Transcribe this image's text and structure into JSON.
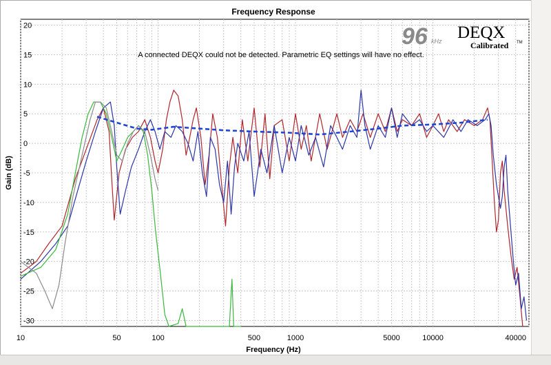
{
  "colors": {
    "background": "#ffffff",
    "grid": "#c8c8c8",
    "red": "#b0242c",
    "blue": "#2a34a8",
    "green": "#38b83a",
    "gray": "#8a8a8a",
    "target": "#1e46d2"
  },
  "brand": {
    "rate": "96",
    "rate_unit": "kHz",
    "name": "DEQX",
    "tagline": "Calibrated",
    "tm": "TM"
  },
  "notice": "A connected DEQX could not be detected.  Parametric EQ settings will have no effect.",
  "chart_data": {
    "type": "line",
    "title": "Frequency Response",
    "xlabel": "Frequency (Hz)",
    "ylabel": "Gain (dB)",
    "x_scale": "log",
    "xlim": [
      10,
      50000
    ],
    "ylim": [
      -31,
      21
    ],
    "grid": true,
    "x_ticks": [
      10,
      50,
      100,
      500,
      1000,
      5000,
      10000,
      40000
    ],
    "y_ticks": [
      20,
      15,
      10,
      5,
      0,
      -5,
      -10,
      -15,
      -20,
      -25,
      -30
    ],
    "series": [
      {
        "color_key": "red",
        "points": [
          [
            10,
            -22
          ],
          [
            13,
            -20
          ],
          [
            16,
            -17
          ],
          [
            20,
            -14
          ],
          [
            25,
            -6
          ],
          [
            30,
            -1
          ],
          [
            36,
            4
          ],
          [
            40,
            6
          ],
          [
            44,
            2
          ],
          [
            46,
            -6
          ],
          [
            48,
            -13
          ],
          [
            52,
            -5
          ],
          [
            58,
            -1
          ],
          [
            65,
            1
          ],
          [
            72,
            2
          ],
          [
            80,
            4
          ],
          [
            88,
            1
          ],
          [
            95,
            -3
          ],
          [
            100,
            -5
          ],
          [
            108,
            -1
          ],
          [
            115,
            4
          ],
          [
            122,
            7
          ],
          [
            130,
            9
          ],
          [
            140,
            8
          ],
          [
            150,
            4
          ],
          [
            160,
            -2
          ],
          [
            170,
            1
          ],
          [
            180,
            4
          ],
          [
            190,
            6
          ],
          [
            205,
            1
          ],
          [
            220,
            -7
          ],
          [
            235,
            -2
          ],
          [
            250,
            5
          ],
          [
            270,
            1
          ],
          [
            290,
            -7
          ],
          [
            310,
            -14
          ],
          [
            330,
            -4
          ],
          [
            350,
            1
          ],
          [
            380,
            -5
          ],
          [
            410,
            4
          ],
          [
            450,
            -3
          ],
          [
            500,
            6
          ],
          [
            550,
            -4
          ],
          [
            600,
            5
          ],
          [
            650,
            -6
          ],
          [
            700,
            3
          ],
          [
            800,
            4
          ],
          [
            900,
            -3
          ],
          [
            1000,
            5
          ],
          [
            1100,
            -1
          ],
          [
            1200,
            3
          ],
          [
            1300,
            -3
          ],
          [
            1500,
            5
          ],
          [
            1700,
            -1
          ],
          [
            2000,
            5
          ],
          [
            2200,
            1
          ],
          [
            2500,
            4
          ],
          [
            2800,
            2
          ],
          [
            3100,
            5
          ],
          [
            3500,
            1
          ],
          [
            4000,
            5
          ],
          [
            4500,
            2
          ],
          [
            5000,
            6
          ],
          [
            5500,
            2
          ],
          [
            6000,
            4
          ],
          [
            7000,
            3
          ],
          [
            8000,
            5
          ],
          [
            9000,
            1
          ],
          [
            10000,
            3
          ],
          [
            11000,
            5
          ],
          [
            12000,
            2
          ],
          [
            13000,
            4
          ],
          [
            15000,
            2
          ],
          [
            17000,
            4
          ],
          [
            20000,
            3
          ],
          [
            23000,
            4
          ],
          [
            25000,
            6
          ],
          [
            26000,
            4
          ],
          [
            27000,
            -3
          ],
          [
            28000,
            -10
          ],
          [
            29000,
            -15
          ],
          [
            30000,
            -13
          ],
          [
            31000,
            -5
          ],
          [
            32000,
            -3
          ],
          [
            33000,
            -8
          ],
          [
            35000,
            -14
          ],
          [
            37000,
            -19
          ],
          [
            39000,
            -23
          ],
          [
            41000,
            -21
          ],
          [
            43000,
            -26
          ],
          [
            45000,
            -31
          ]
        ]
      },
      {
        "color_key": "blue",
        "points": [
          [
            10,
            -23
          ],
          [
            14,
            -20
          ],
          [
            18,
            -17
          ],
          [
            22,
            -14
          ],
          [
            26,
            -8
          ],
          [
            30,
            -3
          ],
          [
            35,
            2
          ],
          [
            40,
            6
          ],
          [
            45,
            7
          ],
          [
            48,
            3
          ],
          [
            50,
            -4
          ],
          [
            53,
            -12
          ],
          [
            58,
            -8
          ],
          [
            64,
            -4
          ],
          [
            72,
            -1
          ],
          [
            80,
            2
          ],
          [
            88,
            4
          ],
          [
            95,
            2
          ],
          [
            103,
            -1
          ],
          [
            112,
            2
          ],
          [
            124,
            1
          ],
          [
            135,
            3
          ],
          [
            150,
            2
          ],
          [
            165,
            0
          ],
          [
            180,
            -3
          ],
          [
            195,
            2
          ],
          [
            210,
            -5
          ],
          [
            225,
            -9
          ],
          [
            240,
            1
          ],
          [
            260,
            -1
          ],
          [
            280,
            -7
          ],
          [
            300,
            -10
          ],
          [
            320,
            -3
          ],
          [
            340,
            -12
          ],
          [
            360,
            -4
          ],
          [
            380,
            0
          ],
          [
            420,
            -3
          ],
          [
            460,
            2
          ],
          [
            500,
            -9
          ],
          [
            560,
            -1
          ],
          [
            620,
            -5
          ],
          [
            700,
            3
          ],
          [
            800,
            -5
          ],
          [
            900,
            1
          ],
          [
            1000,
            -3
          ],
          [
            1100,
            3
          ],
          [
            1250,
            -2
          ],
          [
            1400,
            1
          ],
          [
            1600,
            -4
          ],
          [
            1800,
            3
          ],
          [
            2000,
            1
          ],
          [
            2200,
            -1
          ],
          [
            2500,
            3
          ],
          [
            2800,
            1
          ],
          [
            3000,
            9
          ],
          [
            3200,
            3
          ],
          [
            3500,
            -1
          ],
          [
            4000,
            3
          ],
          [
            4500,
            1
          ],
          [
            5000,
            6
          ],
          [
            5500,
            1
          ],
          [
            6000,
            5
          ],
          [
            7000,
            3
          ],
          [
            8000,
            4
          ],
          [
            9000,
            2
          ],
          [
            10000,
            3
          ],
          [
            12000,
            1
          ],
          [
            14000,
            4
          ],
          [
            16000,
            2
          ],
          [
            18000,
            4
          ],
          [
            21000,
            3
          ],
          [
            24000,
            4
          ],
          [
            25500,
            5
          ],
          [
            26500,
            3
          ],
          [
            27500,
            -2
          ],
          [
            29000,
            -7
          ],
          [
            31000,
            -11
          ],
          [
            32000,
            -9
          ],
          [
            33000,
            -4
          ],
          [
            34000,
            -2
          ],
          [
            35000,
            -8
          ],
          [
            37000,
            -15
          ],
          [
            38500,
            -20
          ],
          [
            40000,
            -24
          ],
          [
            42000,
            -22
          ],
          [
            44000,
            -28
          ],
          [
            46000,
            -26
          ],
          [
            48000,
            -30
          ]
        ]
      },
      {
        "color_key": "green",
        "points": [
          [
            10,
            -22.5
          ],
          [
            14,
            -21
          ],
          [
            18,
            -18
          ],
          [
            22,
            -12
          ],
          [
            25,
            -5
          ],
          [
            28,
            1
          ],
          [
            31,
            5
          ],
          [
            34,
            7
          ],
          [
            38,
            7
          ],
          [
            42,
            5
          ],
          [
            46,
            1
          ],
          [
            50,
            -3
          ],
          [
            55,
            -1
          ],
          [
            60,
            1
          ],
          [
            66,
            2
          ],
          [
            72,
            3
          ],
          [
            78,
            2
          ],
          [
            84,
            -2
          ],
          [
            90,
            -8
          ],
          [
            96,
            -15
          ],
          [
            104,
            -22
          ],
          [
            112,
            -29
          ],
          [
            120,
            -31
          ],
          [
            140,
            -30.5
          ],
          [
            150,
            -28
          ],
          [
            160,
            -31
          ],
          [
            330,
            -31
          ],
          [
            345,
            -23
          ],
          [
            355,
            -31
          ],
          [
            400,
            -31
          ]
        ]
      },
      {
        "color_key": "gray",
        "points": [
          [
            10,
            -20
          ],
          [
            13,
            -22
          ],
          [
            15,
            -25
          ],
          [
            17,
            -28
          ],
          [
            19,
            -24
          ],
          [
            21,
            -17
          ],
          [
            24,
            -9
          ],
          [
            28,
            -2
          ],
          [
            32,
            4
          ],
          [
            35,
            7
          ],
          [
            38,
            7
          ],
          [
            42,
            6
          ],
          [
            46,
            2
          ],
          [
            50,
            -2
          ],
          [
            55,
            -3
          ],
          [
            60,
            0
          ],
          [
            66,
            2
          ],
          [
            72,
            3
          ],
          [
            80,
            2
          ],
          [
            88,
            -2
          ],
          [
            95,
            -6
          ],
          [
            100,
            -8
          ]
        ]
      },
      {
        "color_key": "target",
        "dashed": true,
        "points": [
          [
            36,
            4.5
          ],
          [
            50,
            3.5
          ],
          [
            70,
            2.5
          ],
          [
            90,
            2.3
          ],
          [
            130,
            2.8
          ],
          [
            200,
            2.5
          ],
          [
            300,
            2.2
          ],
          [
            500,
            2.0
          ],
          [
            900,
            1.8
          ],
          [
            1500,
            1.5
          ],
          [
            2500,
            2
          ],
          [
            4000,
            2.5
          ],
          [
            6000,
            3
          ],
          [
            10000,
            3.2
          ],
          [
            16000,
            3.5
          ],
          [
            25000,
            4
          ]
        ]
      }
    ]
  }
}
